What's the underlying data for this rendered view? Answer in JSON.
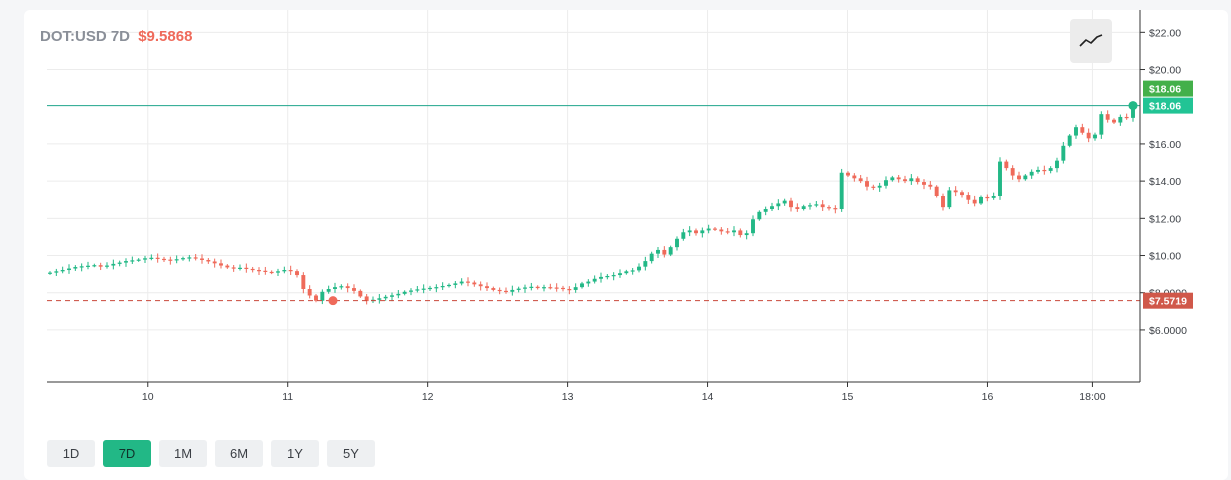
{
  "header": {
    "pair": "DOT:USD",
    "period": "7D",
    "price": "$9.5868"
  },
  "chart_type_button": {
    "icon": "line-chart-icon"
  },
  "range_buttons": [
    {
      "label": "1D",
      "active": false
    },
    {
      "label": "7D",
      "active": true
    },
    {
      "label": "1M",
      "active": false
    },
    {
      "label": "6M",
      "active": false
    },
    {
      "label": "1Y",
      "active": false
    },
    {
      "label": "5Y",
      "active": false
    }
  ],
  "colors": {
    "up": "#22b886",
    "down": "#ef6a5a",
    "high_line": "#1fa58c",
    "low_line": "#c9483a",
    "high_tag": "#22c495",
    "high_tag_top": "#43b04a",
    "low_tag": "#d0584a",
    "grid": "#ececec",
    "axis": "#333333"
  },
  "chart_data": {
    "type": "candlestick",
    "y_tick_labels": [
      "$22.00",
      "$20.00",
      "$18.06",
      "$16.00",
      "$14.00",
      "$12.00",
      "$10.00",
      "$8.0000",
      "$7.5719",
      "$6.0000"
    ],
    "y_ticks": [
      22,
      20,
      16,
      14,
      12,
      10,
      8,
      6
    ],
    "y_tick_text": [
      "$22.00",
      "$20.00",
      "$16.00",
      "$14.00",
      "$12.00",
      "$10.00",
      "$8.0000",
      "$6.0000"
    ],
    "ylim": [
      3.2,
      23.2
    ],
    "x_ticks": [
      {
        "label": "10",
        "day": 10
      },
      {
        "label": "11",
        "day": 11
      },
      {
        "label": "12",
        "day": 12
      },
      {
        "label": "13",
        "day": 13
      },
      {
        "label": "14",
        "day": 14
      },
      {
        "label": "15",
        "day": 15
      },
      {
        "label": "16",
        "day": 16
      },
      {
        "label": "18:00",
        "day": 16.75
      }
    ],
    "xlim": [
      9.28,
      17.09
    ],
    "high": {
      "value": 18.06,
      "label": "$18.06"
    },
    "low": {
      "value": 7.5719,
      "label": "$7.5719"
    },
    "closes": [
      9.08,
      9.15,
      9.22,
      9.3,
      9.38,
      9.42,
      9.45,
      9.48,
      9.4,
      9.46,
      9.55,
      9.62,
      9.7,
      9.74,
      9.78,
      9.85,
      9.88,
      9.82,
      9.78,
      9.74,
      9.8,
      9.86,
      9.9,
      9.84,
      9.76,
      9.68,
      9.58,
      9.46,
      9.36,
      9.3,
      9.34,
      9.28,
      9.22,
      9.18,
      9.12,
      9.08,
      9.15,
      9.22,
      9.16,
      8.95,
      8.2,
      7.85,
      7.57,
      8.05,
      8.2,
      8.3,
      8.35,
      8.25,
      8.1,
      7.8,
      7.55,
      7.62,
      7.7,
      7.78,
      7.86,
      7.94,
      8.05,
      8.12,
      8.18,
      8.22,
      8.26,
      8.3,
      8.36,
      8.42,
      8.5,
      8.6,
      8.55,
      8.45,
      8.35,
      8.25,
      8.15,
      8.1,
      8.05,
      8.15,
      8.22,
      8.28,
      8.32,
      8.25,
      8.3,
      8.28,
      8.26,
      8.2,
      8.15,
      8.3,
      8.5,
      8.6,
      8.75,
      8.85,
      8.9,
      8.95,
      9.05,
      9.15,
      9.2,
      9.4,
      9.7,
      10.1,
      10.3,
      10.05,
      10.45,
      10.9,
      11.25,
      11.35,
      11.2,
      11.35,
      11.45,
      11.4,
      11.3,
      11.25,
      11.35,
      11.1,
      11.2,
      11.95,
      12.35,
      12.5,
      12.65,
      12.8,
      12.95,
      12.6,
      12.5,
      12.65,
      12.7,
      12.75,
      12.6,
      12.55,
      12.5,
      14.45,
      14.3,
      14.15,
      14.0,
      13.7,
      13.65,
      13.75,
      14.05,
      14.2,
      14.1,
      14.0,
      14.15,
      13.95,
      13.8,
      13.7,
      13.2,
      12.6,
      13.5,
      13.4,
      13.25,
      13.0,
      12.8,
      13.15,
      13.1,
      13.2,
      15.05,
      14.7,
      14.3,
      14.1,
      14.3,
      14.5,
      14.6,
      14.55,
      14.7,
      15.1,
      15.9,
      16.45,
      16.9,
      16.6,
      16.3,
      16.5,
      17.6,
      17.3,
      17.15,
      17.45,
      17.4,
      18.06
    ]
  }
}
